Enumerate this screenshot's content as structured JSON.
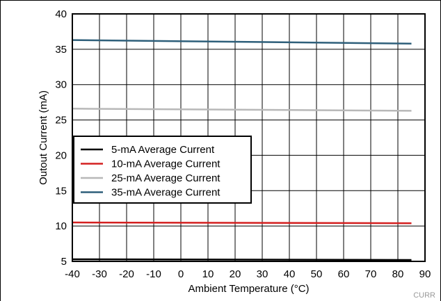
{
  "chart_data": {
    "type": "line",
    "title": "",
    "xlabel": "Ambient Temperature (°C)",
    "ylabel": "Outout Current (mA)",
    "xlim": [
      -40,
      90
    ],
    "ylim": [
      5,
      40
    ],
    "xticks": [
      "-40",
      "-30",
      "-20",
      "-10",
      "0",
      "10",
      "20",
      "30",
      "40",
      "50",
      "60",
      "70",
      "80",
      "90"
    ],
    "yticks": [
      "5",
      "10",
      "15",
      "20",
      "25",
      "30",
      "35",
      "40"
    ],
    "grid": true,
    "legend_position": "left-middle",
    "x": [
      -40,
      85
    ],
    "series": [
      {
        "name": "5-mA Average Current",
        "color": "#000000",
        "values": [
          5.3,
          5.2
        ]
      },
      {
        "name": "10-mA Average Current",
        "color": "#d42020",
        "values": [
          10.5,
          10.4
        ]
      },
      {
        "name": "25-mA Average Current",
        "color": "#b8b8b8",
        "values": [
          26.6,
          26.3
        ]
      },
      {
        "name": "35-mA Average Current",
        "color": "#2e5f7a",
        "values": [
          36.3,
          35.8
        ]
      }
    ]
  },
  "corner_code": "CURR"
}
